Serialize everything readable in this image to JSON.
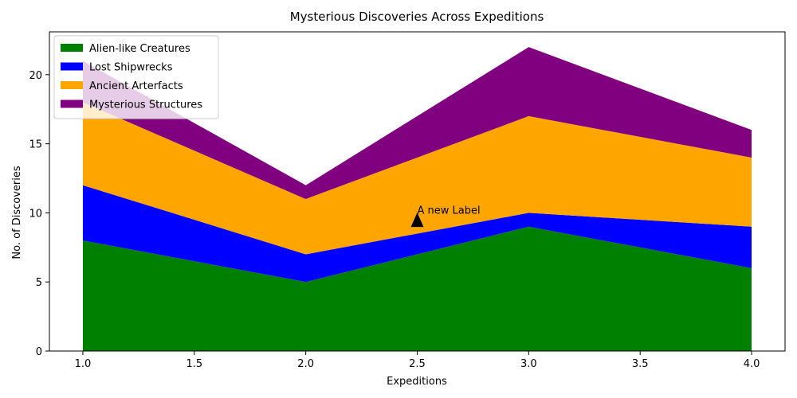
{
  "chart_data": {
    "type": "area",
    "stacked": true,
    "title": "Mysterious Discoveries Across Expeditions",
    "xlabel": "Expeditions",
    "ylabel": "No. of Discoveries",
    "x": [
      1,
      2,
      3,
      4
    ],
    "xlim": [
      0.85,
      4.15
    ],
    "ylim": [
      0,
      23.1
    ],
    "xticks": [
      "1.0",
      "1.5",
      "2.0",
      "2.5",
      "3.0",
      "3.5",
      "4.0"
    ],
    "yticks": [
      "0",
      "5",
      "10",
      "15",
      "20"
    ],
    "grid": false,
    "legend_position": "top-left",
    "series": [
      {
        "name": "Alien-like Creatures",
        "values": [
          8,
          5,
          9,
          6
        ],
        "color": "#008000"
      },
      {
        "name": "Lost Shipwrecks",
        "values": [
          4,
          2,
          1,
          3
        ],
        "color": "#0000ff"
      },
      {
        "name": "Ancient Arterfacts",
        "values": [
          6,
          4,
          7,
          5
        ],
        "color": "#ffa500"
      },
      {
        "name": "Mysterious Structures",
        "values": [
          3,
          1,
          5,
          2
        ],
        "color": "#800080"
      }
    ],
    "annotations": [
      {
        "text": "A new Label",
        "x": 2.5,
        "y": 10,
        "arrow_tip_y": 9.5,
        "marker": "triangle"
      }
    ]
  }
}
